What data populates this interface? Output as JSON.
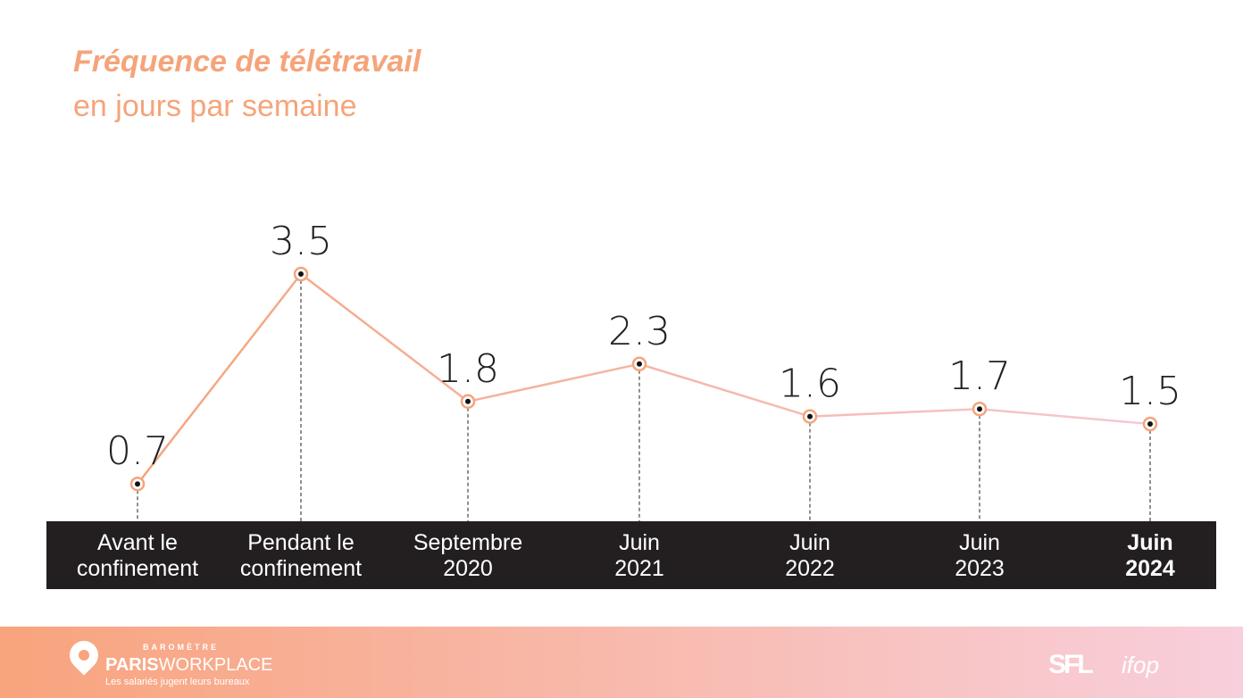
{
  "title": "Fréquence de télétravail",
  "subtitle": "en jours par semaine",
  "chart_data": {
    "type": "line",
    "title": "Fréquence de télétravail",
    "subtitle": "en jours par semaine",
    "categories": [
      [
        "Avant le",
        "confinement"
      ],
      [
        "Pendant le",
        "confinement"
      ],
      [
        "Septembre",
        "2020"
      ],
      [
        "Juin",
        "2021"
      ],
      [
        "Juin",
        "2022"
      ],
      [
        "Juin",
        "2023"
      ],
      [
        "Juin",
        "2024"
      ]
    ],
    "values": [
      0.7,
      3.5,
      1.8,
      2.3,
      1.6,
      1.7,
      1.5
    ],
    "labels": [
      "0.7",
      "3.5",
      "1.8",
      "2.3",
      "1.6",
      "1.7",
      "1.5"
    ],
    "ylabel": "jours par semaine",
    "grid": false,
    "colors": {
      "line_start": "#f4a47c",
      "line_end": "#f6c8d3",
      "marker": "#f4a47c",
      "band": "#231f20"
    }
  },
  "footer": {
    "brand_top": "BAROMÈTRE",
    "brand_bold": "PARIS",
    "brand_rest": "WORKPLACE",
    "tagline": "Les salariés jugent leurs bureaux",
    "partner1": "SFL",
    "partner2": "ifop"
  }
}
